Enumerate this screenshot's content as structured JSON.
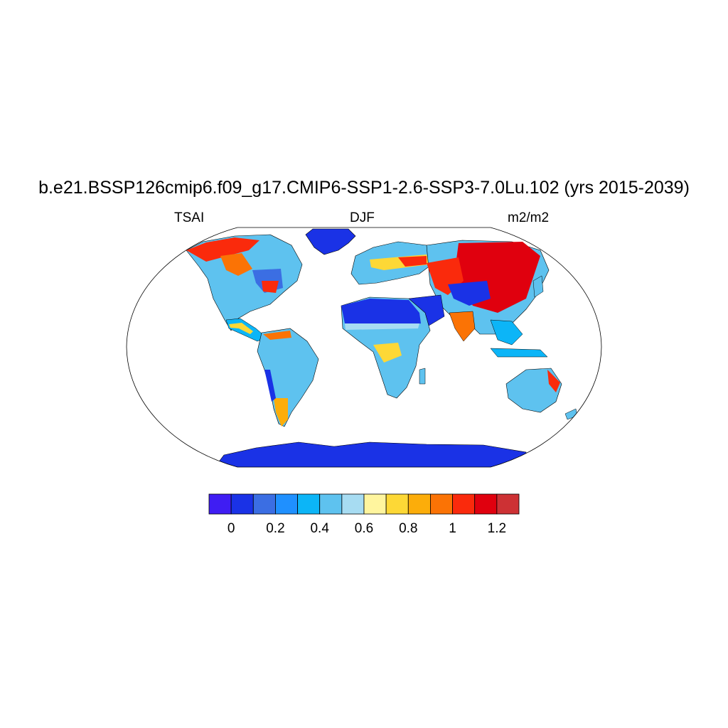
{
  "title": "b.e21.BSSP126cmip6.f09_g17.CMIP6-SSP1-2.6-SSP3-7.0Lu.102 (yrs 2015-2039)",
  "left_label": "TSAI",
  "center_label": "DJF",
  "right_label": "m2/m2",
  "colorbar": {
    "colors": [
      "#3f1df3",
      "#1a32e6",
      "#3b6ee3",
      "#1f90ff",
      "#0cb5f7",
      "#5ec2ef",
      "#a7dcf2",
      "#fff59e",
      "#fdd836",
      "#fcad0a",
      "#fb7305",
      "#fa2a0c",
      "#e0000e",
      "#cd3134"
    ],
    "tick_labels": [
      "0",
      "0.2",
      "0.4",
      "0.6",
      "0.8",
      "1",
      "1.2"
    ],
    "tick_boundaries": [
      1,
      3,
      5,
      7,
      9,
      11,
      13
    ]
  },
  "map": {
    "projection": "Robinson",
    "variable": "TSAI",
    "season": "DJF",
    "units": "m2/m2"
  }
}
